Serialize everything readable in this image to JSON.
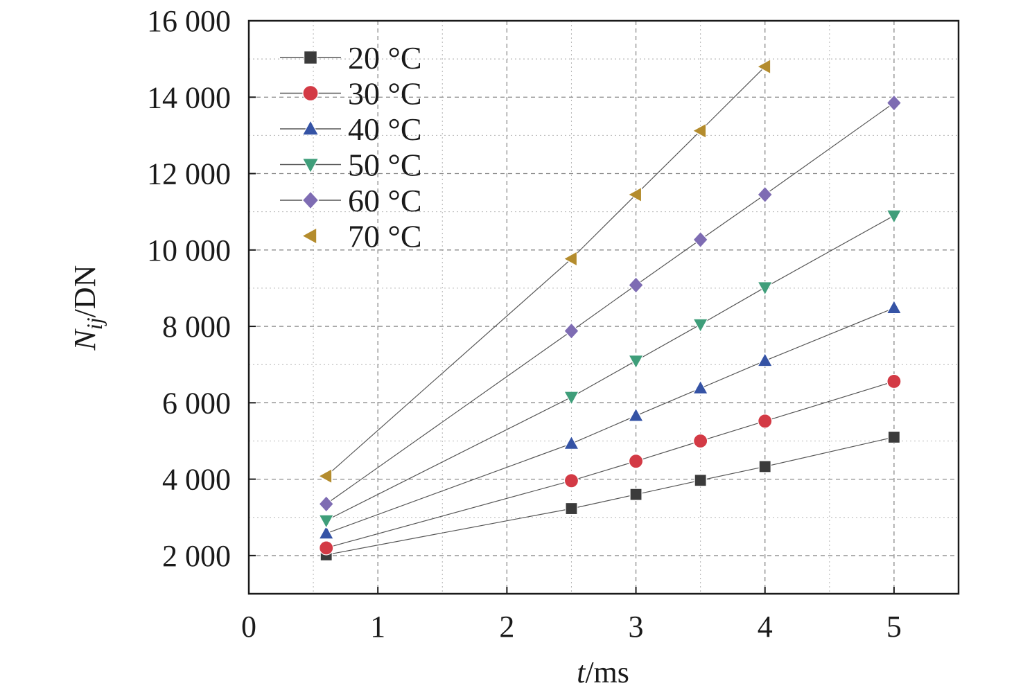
{
  "chart_data": {
    "type": "line",
    "xlabel": {
      "var": "t",
      "unit": "/ms"
    },
    "ylabel": {
      "var": "N",
      "sub": "ij",
      "unit": "/DN"
    },
    "xlim": [
      0,
      5.5
    ],
    "ylim": [
      1000,
      16000
    ],
    "x_ticks": [
      0,
      1,
      2,
      3,
      4,
      5
    ],
    "x_tick_labels": [
      "0",
      "1",
      "2",
      "3",
      "4",
      "5"
    ],
    "y_ticks": [
      2000,
      4000,
      6000,
      8000,
      10000,
      12000,
      14000,
      16000
    ],
    "y_tick_labels": [
      "2 000",
      "4 000",
      "6 000",
      "8 000",
      "10 000",
      "12 000",
      "14 000",
      "16 000"
    ],
    "grid": true,
    "legend_position": "top-left",
    "series": [
      {
        "name": "20 °C",
        "marker": "square",
        "color": "#3b3b3b",
        "x": [
          0.6,
          2.5,
          3,
          3.5,
          4,
          5
        ],
        "y": [
          2020,
          3230,
          3600,
          3970,
          4330,
          5100
        ]
      },
      {
        "name": "30 °C",
        "marker": "circle",
        "color": "#d33a45",
        "x": [
          0.6,
          2.5,
          3,
          3.5,
          4,
          5
        ],
        "y": [
          2200,
          3960,
          4470,
          5000,
          5520,
          6560
        ]
      },
      {
        "name": "40 °C",
        "marker": "triangle-up",
        "color": "#3553a5",
        "x": [
          0.6,
          2.5,
          3,
          3.5,
          4,
          5
        ],
        "y": [
          2580,
          4930,
          5660,
          6380,
          7100,
          8480
        ]
      },
      {
        "name": "50 °C",
        "marker": "triangle-down",
        "color": "#3f9e7a",
        "x": [
          0.6,
          2.5,
          3,
          3.5,
          4,
          5
        ],
        "y": [
          2920,
          6150,
          7100,
          8050,
          9020,
          10900
        ]
      },
      {
        "name": "60 °C",
        "marker": "diamond",
        "color": "#7e6cb3",
        "x": [
          0.6,
          2.5,
          3,
          3.5,
          4,
          5
        ],
        "y": [
          3350,
          7880,
          9080,
          10270,
          11450,
          13850
        ]
      },
      {
        "name": "70 °C",
        "marker": "triangle-left",
        "color": "#b48c2d",
        "x": [
          0.6,
          2.5,
          3,
          3.5,
          4
        ],
        "y": [
          4080,
          9770,
          11450,
          13120,
          14800
        ]
      }
    ]
  }
}
